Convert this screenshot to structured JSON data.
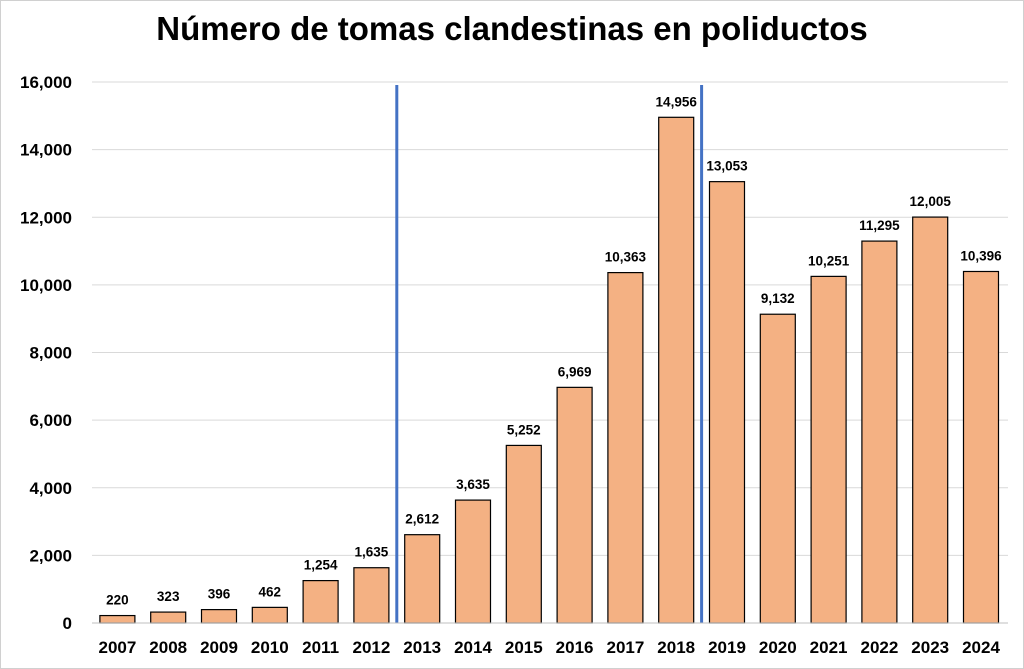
{
  "chart_data": {
    "type": "bar",
    "title": "Número de tomas clandestinas en poliductos",
    "xlabel": "",
    "ylabel": "",
    "categories": [
      "2007",
      "2008",
      "2009",
      "2010",
      "2011",
      "2012",
      "2013",
      "2014",
      "2015",
      "2016",
      "2017",
      "2018",
      "2019",
      "2020",
      "2021",
      "2022",
      "2023",
      "2024"
    ],
    "values": [
      220,
      323,
      396,
      462,
      1254,
      1635,
      2612,
      3635,
      5252,
      6969,
      10363,
      14956,
      13053,
      9132,
      10251,
      11295,
      12005,
      10396
    ],
    "value_labels": [
      "220",
      "323",
      "396",
      "462",
      "1,254",
      "1,635",
      "2,612",
      "3,635",
      "5,252",
      "6,969",
      "10,363",
      "14,956",
      "13,053",
      "9,132",
      "10,251",
      "11,295",
      "12,005",
      "10,396"
    ],
    "ylim": [
      0,
      16000
    ],
    "yticks": [
      0,
      2000,
      4000,
      6000,
      8000,
      10000,
      12000,
      14000,
      16000
    ],
    "ytick_labels": [
      "0",
      "2,000",
      "4,000",
      "6,000",
      "8,000",
      "10,000",
      "12,000",
      "14,000",
      "16,000"
    ],
    "grid": true,
    "legend": "none",
    "annotations": {
      "vertical_lines": [
        {
          "between": [
            "2012",
            "2013"
          ]
        },
        {
          "between": [
            "2018",
            "2019"
          ]
        }
      ]
    },
    "colors": {
      "bar_fill": "#F4B183",
      "bar_stroke": "#000000",
      "grid": "#d9d9d9",
      "marker_line": "#4472C4"
    }
  }
}
